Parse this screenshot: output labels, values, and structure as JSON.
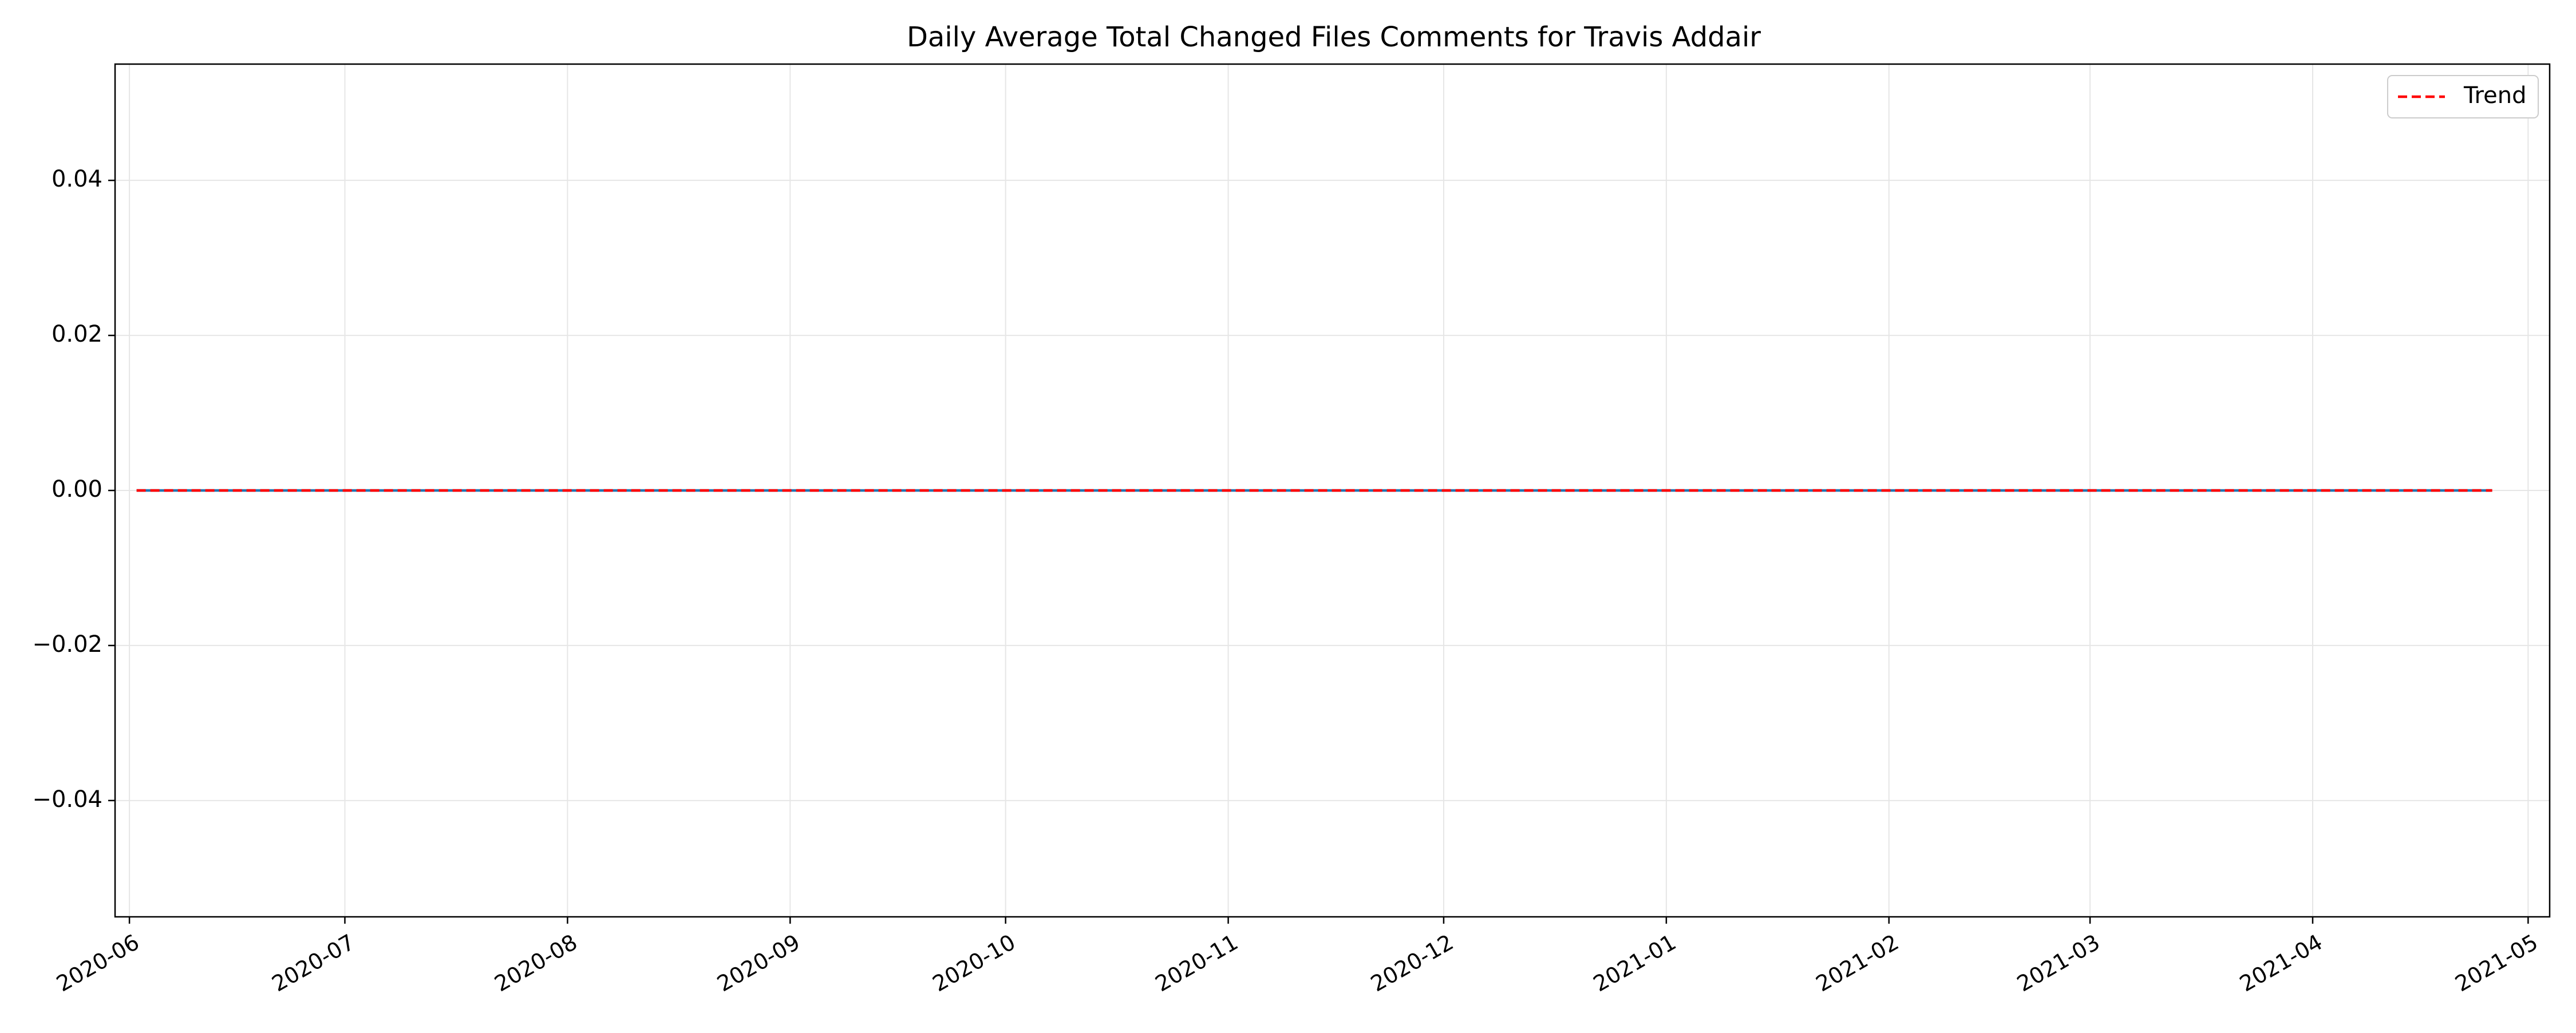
{
  "chart_data": {
    "type": "line",
    "title": "Daily Average Total Changed Files Comments for Travis Addair",
    "xlabel": "",
    "ylabel": "",
    "x_range": [
      "2020-05-30",
      "2021-05-04"
    ],
    "ylim": [
      -0.055,
      0.055
    ],
    "y_ticks": [
      0.04,
      0.02,
      0.0,
      -0.02,
      -0.04
    ],
    "y_tick_labels": [
      "0.04",
      "0.02",
      "0.00",
      "−0.02",
      "−0.04"
    ],
    "x_ticks": [
      "2020-06-01",
      "2020-07-01",
      "2020-08-01",
      "2020-09-01",
      "2020-10-01",
      "2020-11-01",
      "2020-12-01",
      "2021-01-01",
      "2021-02-01",
      "2021-03-01",
      "2021-04-01",
      "2021-05-01"
    ],
    "x_tick_labels": [
      "2020-06",
      "2020-07",
      "2020-08",
      "2020-09",
      "2020-10",
      "2020-11",
      "2020-12",
      "2021-01",
      "2021-02",
      "2021-03",
      "2021-04",
      "2021-05"
    ],
    "grid": true,
    "legend_position": "top-right",
    "series": [
      {
        "role": "data",
        "color": "#1f77b4",
        "style": "solid",
        "x": [
          "2020-06-02",
          "2021-04-26"
        ],
        "y": [
          0,
          0
        ]
      },
      {
        "role": "trend",
        "name": "Trend",
        "color": "#ff0000",
        "style": "dashed",
        "x": [
          "2020-06-02",
          "2021-04-26"
        ],
        "y": [
          0,
          0
        ]
      }
    ]
  }
}
